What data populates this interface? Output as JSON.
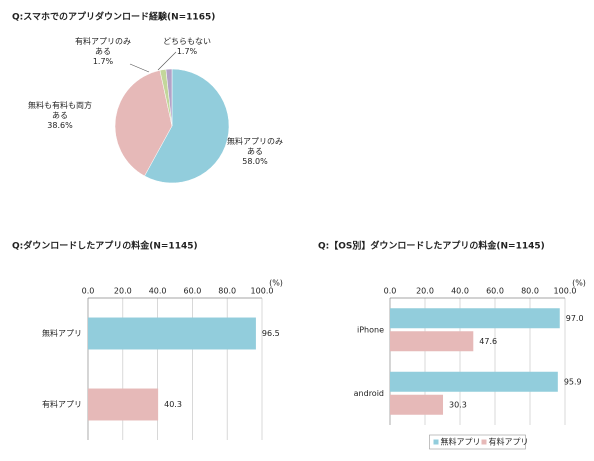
{
  "chart_data": [
    {
      "type": "pie",
      "title": "Q:スマホでのアプリダウンロード経験(N=1165)",
      "categories": [
        "無料アプリのみある",
        "無料も有料も両方ある",
        "有料アプリのみある",
        "どちらもない"
      ],
      "values": [
        58.0,
        38.6,
        1.7,
        1.7
      ],
      "value_labels": [
        "58.0%",
        "38.6%",
        "1.7%",
        "1.7%"
      ],
      "colors": [
        "#92cddc",
        "#e6b9b8",
        "#c3d69b",
        "#b3a2c7"
      ]
    },
    {
      "type": "hbar",
      "title": "Q:ダウンロードしたアプリの料金(N=1145)",
      "unit_label": "(%)",
      "categories": [
        "無料アプリ",
        "有料アプリ"
      ],
      "series": [
        {
          "name": null,
          "colors": [
            "#92cddc",
            "#e6b9b8"
          ],
          "values": [
            96.5,
            40.3
          ]
        }
      ],
      "xlim": [
        0,
        100
      ],
      "xticks": [
        {
          "value": 0,
          "label": "0.0"
        },
        {
          "value": 20,
          "label": "20.0"
        },
        {
          "value": 40,
          "label": "40.0"
        },
        {
          "value": 60,
          "label": "60.0"
        },
        {
          "value": 80,
          "label": "80.0"
        },
        {
          "value": 100,
          "label": "100.0"
        }
      ],
      "grid": true,
      "legend": false
    },
    {
      "type": "hbar",
      "title": "Q:【OS別】ダウンロードしたアプリの料金(N=1145)",
      "unit_label": "(%)",
      "categories": [
        "iPhone",
        "android"
      ],
      "series": [
        {
          "name": "無料アプリ",
          "color": "#92cddc",
          "values": [
            97.0,
            95.9
          ],
          "value_labels": [
            "97.0",
            "95.9"
          ]
        },
        {
          "name": "有料アプリ",
          "color": "#e6b9b8",
          "values": [
            47.6,
            30.3
          ],
          "value_labels": [
            "47.6",
            "30.3"
          ]
        }
      ],
      "xlim": [
        0,
        100
      ],
      "xticks": [
        {
          "value": 0,
          "label": "0.0"
        },
        {
          "value": 20,
          "label": "20.0"
        },
        {
          "value": 40,
          "label": "40.0"
        },
        {
          "value": 60,
          "label": "60.0"
        },
        {
          "value": 80,
          "label": "80.0"
        },
        {
          "value": 100,
          "label": "100.0"
        }
      ],
      "grid": true,
      "legend": "bottom"
    }
  ]
}
